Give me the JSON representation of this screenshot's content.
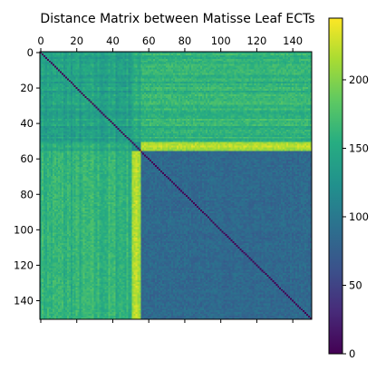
{
  "chart_data": {
    "type": "heatmap",
    "title": "Distance Matrix between Matisse Leaf ECTs",
    "n": 151,
    "x_ticks": [
      0,
      20,
      40,
      60,
      80,
      100,
      120,
      140
    ],
    "y_ticks": [
      0,
      20,
      40,
      60,
      80,
      100,
      120,
      140
    ],
    "x_range": [
      0,
      150
    ],
    "y_range": [
      0,
      150
    ],
    "x_axis_position": "top",
    "y_axis_inverted": true,
    "colormap": "viridis",
    "colorbar": {
      "range": [
        0,
        245
      ],
      "ticks": [
        0,
        50,
        100,
        150,
        200
      ],
      "position": "right"
    },
    "blocks": {
      "groupA_index_range": [
        0,
        55
      ],
      "groupB_index_range": [
        56,
        150
      ],
      "outlier_band_index_range": [
        51,
        55
      ],
      "typical_values": {
        "diagonal": 0,
        "within_groupA": 140,
        "between_groups": 160,
        "within_groupB": 85,
        "outlier_band_vs_groupB": 215,
        "outlier_band_vs_groupA": 150
      }
    },
    "grid": false,
    "legend": "none"
  }
}
